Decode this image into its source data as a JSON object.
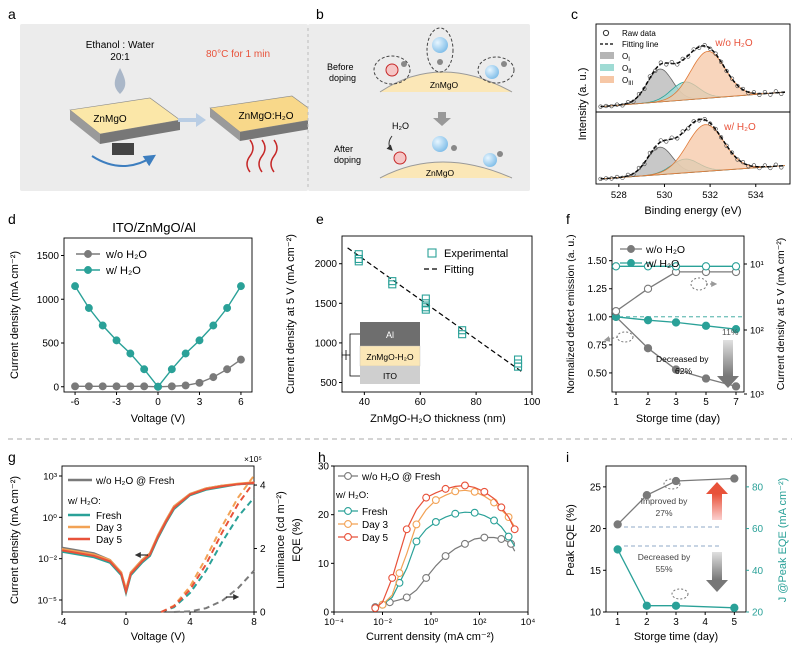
{
  "colors": {
    "gray": "#7a7a7a",
    "teal": "#2aa198",
    "orange": "#f2a255",
    "red": "#e8523a",
    "panel_bg": "#ececec",
    "al": "#6e6e6e",
    "zmo": "#fbe7b7",
    "ito": "#cfcfcf"
  },
  "panels": {
    "a": {
      "letter": "a",
      "ratio_line1": "Ethanol : Water",
      "ratio_line2": "20:1",
      "condition": "80°C for 1 min",
      "film1": "ZnMgO",
      "film2": "ZnMgO:H₂O"
    },
    "b": {
      "letter": "b",
      "before": "Before doping",
      "before_l1": "Before",
      "before_l2": "doping",
      "after_l1": "After",
      "after_l2": "doping",
      "zmo1": "ZnMgO",
      "zmo2": "ZnMgO",
      "h2o": "H₂O"
    },
    "c": {
      "letter": "c",
      "legend": [
        "Raw data",
        "Fitting line",
        "O",
        "O",
        "O"
      ],
      "legend_subs": [
        "I",
        "II",
        "III"
      ],
      "label_top": "w/o H₂O",
      "label_bottom": "w/ H₂O",
      "ylabel": "Intensity (a. u.)",
      "xlabel": "Binding energy (eV)"
    },
    "d": {
      "letter": "d",
      "title": "ITO/ZnMgO/Al"
    },
    "e": {
      "letter": "e",
      "inset": [
        "Al",
        "ZnMgO-H₂O",
        "ITO"
      ]
    },
    "f": {
      "letter": "f",
      "ann_11": "11%",
      "ann_dec_1": "Decreased by",
      "ann_dec_2": "62%"
    },
    "g": {
      "letter": "g",
      "legend_title": "w/ H₂O:",
      "lum_exp": "×10⁵"
    },
    "h": {
      "letter": "h",
      "legend_title": "w/ H₂O:"
    },
    "i": {
      "letter": "i",
      "improved_1": "Improved by",
      "improved_2": "27%",
      "decreased_1": "Decreased by",
      "decreased_2": "55%"
    }
  },
  "chart_data": [
    {
      "id": "c",
      "type": "line",
      "title": "",
      "xlabel": "Binding energy (eV)",
      "ylabel": "Intensity (a. u.)",
      "xlim": [
        527,
        535.5
      ],
      "xticks": [
        528,
        530,
        532,
        534
      ],
      "xticklabels": [
        "528",
        "530",
        "532",
        "534"
      ],
      "series": [
        {
          "name": "O_I w/o H2O",
          "center": 529.8,
          "width": 0.55,
          "amplitude": 0.55
        },
        {
          "name": "O_II w/o H2O",
          "center": 530.9,
          "width": 0.6,
          "amplitude": 0.3
        },
        {
          "name": "O_III w/o H2O",
          "center": 531.9,
          "width": 0.75,
          "amplitude": 0.78
        },
        {
          "name": "O_I w/ H2O",
          "center": 529.8,
          "width": 0.55,
          "amplitude": 0.5
        },
        {
          "name": "O_II w/ H2O",
          "center": 530.9,
          "width": 0.6,
          "amplitude": 0.25
        },
        {
          "name": "O_III w/ H2O",
          "center": 531.8,
          "width": 0.8,
          "amplitude": 0.85
        }
      ]
    },
    {
      "id": "d",
      "type": "line",
      "title": "ITO/ZnMgO/Al",
      "xlabel": "Voltage (V)",
      "ylabel": "Current density (mA cm⁻²)",
      "xlim": [
        -6.8,
        6.8
      ],
      "ylim": [
        -60,
        1700
      ],
      "xticks": [
        -6,
        -3,
        0,
        3,
        6
      ],
      "xticklabels": [
        "-6",
        "-3",
        "0",
        "3",
        "6"
      ],
      "yticks": [
        0,
        500,
        1000,
        1500
      ],
      "yticklabels": [
        "0",
        "500",
        "1000",
        "1500"
      ],
      "x": [
        -6,
        -5,
        -4,
        -3,
        -2,
        -1,
        0,
        1,
        2,
        3,
        4,
        5,
        6
      ],
      "series": [
        {
          "name": "w/o H₂O",
          "values": [
            5,
            5,
            5,
            5,
            5,
            5,
            0,
            5,
            15,
            45,
            110,
            200,
            310
          ]
        },
        {
          "name": "w/ H₂O",
          "values": [
            1150,
            900,
            700,
            530,
            380,
            200,
            0,
            200,
            380,
            530,
            700,
            900,
            1150
          ]
        }
      ]
    },
    {
      "id": "e",
      "type": "scatter",
      "xlabel": "ZnMgO-H₂O thickness (nm)",
      "ylabel": "Current density at 5 V (mA cm⁻²)",
      "xlim": [
        32,
        100
      ],
      "ylim": [
        380,
        2350
      ],
      "xticks": [
        40,
        60,
        80,
        100
      ],
      "xticklabels": [
        "40",
        "60",
        "80",
        "100"
      ],
      "yticks": [
        500,
        1000,
        1500,
        2000
      ],
      "yticklabels": [
        "500",
        "1000",
        "1500",
        "2000"
      ],
      "series": [
        {
          "name": "Experimental",
          "x": [
            38,
            38,
            38,
            50,
            50,
            62,
            62,
            62,
            62,
            75,
            75,
            95,
            95,
            95
          ],
          "values": [
            2120,
            2060,
            2030,
            1780,
            1740,
            1560,
            1500,
            1450,
            1420,
            1160,
            1110,
            790,
            740,
            700
          ]
        },
        {
          "name": "Fitting",
          "x": [
            34,
            97
          ],
          "values": [
            2200,
            620
          ]
        }
      ]
    },
    {
      "id": "f",
      "type": "line",
      "xlabel": "Storge time (day)",
      "ylabel": "Normalized defect emission (a. u.)",
      "ylabel_right": "Current density at 5 V (mA cm⁻²)",
      "ylim": [
        0.33,
        1.72
      ],
      "xticks": [
        1,
        2,
        3,
        5,
        7
      ],
      "xticklabels": [
        "1",
        "2",
        "3",
        "5",
        "7"
      ],
      "yticks": [
        0.5,
        0.75,
        1.0,
        1.25,
        1.5
      ],
      "yticklabels": [
        "0.50",
        "0.75",
        "1.00",
        "1.25",
        "1.50"
      ],
      "yticks_right_labels": [
        "10¹",
        "10²",
        "10³"
      ],
      "x": [
        1,
        2,
        3,
        5,
        7
      ],
      "series": [
        {
          "name": "w/o H₂O",
          "values": [
            1.0,
            0.72,
            0.53,
            0.45,
            0.38
          ]
        },
        {
          "name": "w/ H₂O",
          "values": [
            1.0,
            0.97,
            0.95,
            0.92,
            0.89
          ]
        },
        {
          "name": "w/o H₂O (current, right axis)",
          "values": [
            1.05,
            1.25,
            1.4,
            1.4,
            1.4
          ]
        },
        {
          "name": "w/ H₂O (current, right axis)",
          "values": [
            1.45,
            1.45,
            1.45,
            1.45,
            1.45
          ]
        }
      ]
    },
    {
      "id": "g",
      "type": "line",
      "xlabel": "Voltage (V)",
      "ylabel": "Current density (mA cm⁻²)",
      "ylabel_right": "Luminance (cd m⁻²)",
      "xlim": [
        -4,
        8
      ],
      "ylim_log": [
        -5,
        4
      ],
      "xticks": [
        -4,
        0,
        4,
        8
      ],
      "xticklabels": [
        "-4",
        "0",
        "4",
        "8"
      ],
      "yticks": [
        -5,
        -2,
        1,
        4
      ],
      "yticklabels": [
        "10⁻⁵",
        "10⁻²",
        "10⁰",
        "10³"
      ],
      "yticks_right": [
        0,
        2,
        4
      ],
      "yticklabels_right": [
        "0",
        "2",
        "4"
      ],
      "series": [
        {
          "name": "w/o H₂O @ Fresh",
          "x": [
            -4,
            -2,
            -1,
            -0.3,
            0,
            0.3,
            1,
            1.5,
            2,
            2.5,
            3,
            4,
            5,
            6,
            7,
            8
          ],
          "values": [
            -1.2,
            -1.6,
            -2.1,
            -3,
            -4.3,
            -3,
            -2.1,
            -1.6,
            -0.3,
            0.8,
            1.8,
            2.7,
            3.1,
            3.3,
            3.4,
            3.45
          ]
        },
        {
          "name": "Fresh",
          "x": [
            -4,
            -2,
            -1,
            -0.3,
            0,
            0.3,
            1,
            1.5,
            2,
            2.5,
            3,
            4,
            5,
            6,
            7,
            8
          ],
          "values": [
            -1.5,
            -1.9,
            -2.3,
            -3.2,
            -4.5,
            -3.2,
            -2.3,
            -1.8,
            -0.5,
            0.6,
            1.6,
            2.6,
            3.0,
            3.2,
            3.4,
            3.5
          ]
        },
        {
          "name": "Day 3",
          "x": [
            -4,
            -2,
            -1,
            -0.3,
            0,
            0.3,
            1,
            1.5,
            2,
            2.5,
            3,
            4,
            5,
            6,
            7,
            8
          ],
          "values": [
            -1.3,
            -1.7,
            -2.1,
            -3.0,
            -4.2,
            -3.0,
            -2.1,
            -1.6,
            -0.3,
            0.8,
            1.8,
            2.7,
            3.1,
            3.3,
            3.45,
            3.55
          ]
        },
        {
          "name": "Day 5",
          "x": [
            -4,
            -2,
            -1,
            -0.3,
            0,
            0.3,
            1,
            1.5,
            2,
            2.5,
            3,
            4,
            5,
            6,
            7,
            8
          ],
          "values": [
            -1.4,
            -1.8,
            -2.2,
            -3.1,
            -4.4,
            -3.1,
            -2.2,
            -1.7,
            -0.4,
            0.7,
            1.7,
            2.65,
            3.05,
            3.25,
            3.4,
            3.5
          ]
        },
        {
          "name": "lum w/o H₂O @ Fresh",
          "x": [
            3,
            4,
            5,
            6,
            7,
            8
          ],
          "values": [
            0,
            0.02,
            0.12,
            0.35,
            0.75,
            1.3
          ]
        },
        {
          "name": "lum Fresh",
          "x": [
            2.2,
            3,
            4,
            5,
            6,
            7,
            8
          ],
          "values": [
            0,
            0.15,
            0.6,
            1.3,
            2.2,
            3.0,
            3.6
          ]
        },
        {
          "name": "lum Day 3",
          "x": [
            2.2,
            3,
            4,
            5,
            6,
            7,
            8
          ],
          "values": [
            0,
            0.2,
            0.8,
            1.7,
            2.7,
            3.6,
            4.3
          ]
        },
        {
          "name": "lum Day 5",
          "x": [
            2.2,
            3,
            4,
            5,
            6,
            7,
            8
          ],
          "values": [
            0,
            0.18,
            0.7,
            1.5,
            2.5,
            3.4,
            4.1
          ]
        }
      ]
    },
    {
      "id": "h",
      "type": "line",
      "xlabel": "Current density (mA cm⁻²)",
      "ylabel": "EQE (%)",
      "xlim_log": [
        -4,
        4
      ],
      "ylim": [
        0,
        30
      ],
      "xticks": [
        -4,
        -2,
        0,
        2,
        4
      ],
      "xticklabels": [
        "10⁻⁴",
        "10⁻²",
        "10⁰",
        "10²",
        "10⁴"
      ],
      "yticks": [
        0,
        10,
        20,
        30
      ],
      "yticklabels": [
        "0",
        "10",
        "20",
        "30"
      ],
      "series": [
        {
          "name": "w/o H₂O @ Fresh",
          "x": [
            -2.3,
            -2.0,
            -1.7,
            -1.3,
            -1.0,
            -0.6,
            -0.2,
            0.2,
            0.6,
            1.0,
            1.4,
            1.8,
            2.2,
            2.6,
            2.9,
            3.1,
            3.3,
            3.45
          ],
          "values": [
            1.0,
            1.5,
            2.0,
            2.5,
            3.0,
            4.5,
            7.0,
            9.5,
            11.5,
            13.0,
            14.0,
            15.0,
            15.3,
            15.3,
            15.0,
            14.6,
            14.0,
            12.5
          ]
        },
        {
          "name": "Fresh",
          "x": [
            -2.0,
            -1.6,
            -1.3,
            -1.0,
            -0.6,
            -0.2,
            0.2,
            0.6,
            1.0,
            1.4,
            1.8,
            2.2,
            2.6,
            2.9,
            3.2,
            3.45
          ],
          "values": [
            1.5,
            3.0,
            6.0,
            9.0,
            14.5,
            17.0,
            18.5,
            19.5,
            20.2,
            20.5,
            20.4,
            19.8,
            18.8,
            17.5,
            15.5,
            13.5
          ]
        },
        {
          "name": "Day 3",
          "x": [
            -2.0,
            -1.6,
            -1.3,
            -1.0,
            -0.6,
            -0.2,
            0.2,
            0.6,
            1.0,
            1.4,
            1.8,
            2.2,
            2.6,
            2.9,
            3.2,
            3.45
          ],
          "values": [
            1.5,
            3.5,
            8.0,
            12.0,
            18.0,
            21.0,
            23.0,
            24.0,
            24.8,
            25.0,
            24.7,
            23.8,
            22.5,
            21.0,
            19.5,
            17.5
          ]
        },
        {
          "name": "Day 5",
          "x": [
            -2.3,
            -2.0,
            -1.6,
            -1.3,
            -1.0,
            -0.6,
            -0.2,
            0.2,
            0.6,
            1.0,
            1.4,
            1.8,
            2.2,
            2.6,
            2.9,
            3.2,
            3.45
          ],
          "values": [
            0.8,
            2.0,
            7.0,
            12.0,
            17.0,
            21.0,
            23.5,
            24.5,
            25.3,
            25.8,
            26.0,
            25.6,
            24.7,
            23.3,
            21.5,
            19.5,
            17.0
          ]
        }
      ]
    },
    {
      "id": "i",
      "type": "line",
      "xlabel": "Storge time (day)",
      "ylabel": "Peak EQE (%)",
      "ylabel_right": "J @Peak EQE (mA cm⁻²)",
      "xlim": [
        0.6,
        5.4
      ],
      "ylim": [
        10,
        27.5
      ],
      "ylim_right": [
        20,
        90
      ],
      "xticks": [
        1,
        2,
        3,
        4,
        5
      ],
      "xticklabels": [
        "1",
        "2",
        "3",
        "4",
        "5"
      ],
      "yticks": [
        10,
        15,
        20,
        25
      ],
      "yticklabels": [
        "10",
        "15",
        "20",
        "25"
      ],
      "yticks_right": [
        20,
        40,
        60,
        80
      ],
      "yticklabels_right": [
        "20",
        "40",
        "60",
        "80"
      ],
      "x": [
        1,
        2,
        3,
        5
      ],
      "series": [
        {
          "name": "Peak EQE",
          "values": [
            20.5,
            24.0,
            25.7,
            26.0
          ]
        },
        {
          "name": "J @Peak EQE",
          "values": [
            50,
            23,
            23,
            22
          ]
        }
      ]
    }
  ]
}
